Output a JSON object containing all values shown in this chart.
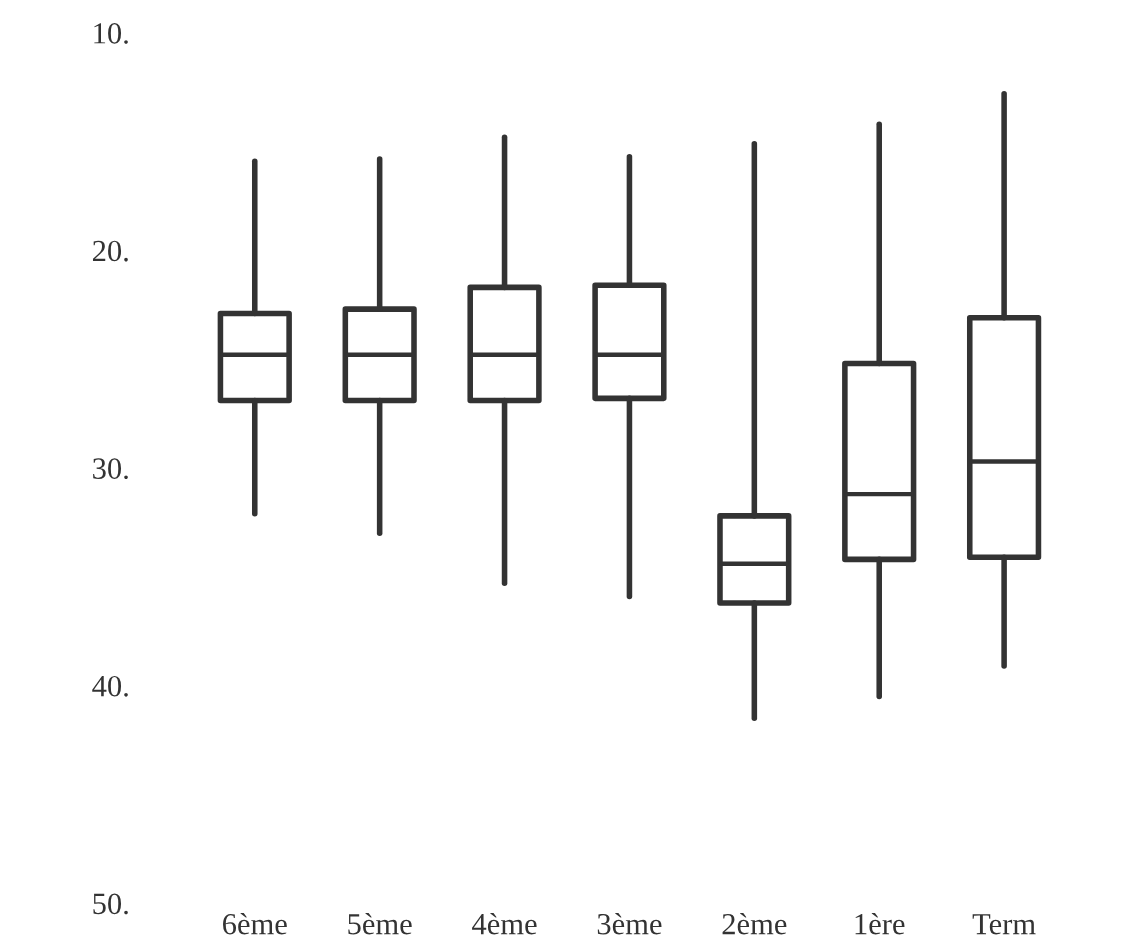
{
  "chart_data": {
    "type": "box",
    "categories": [
      "6ème",
      "5ème",
      "4ème",
      "3ème",
      "2ème",
      "1ère",
      "Term"
    ],
    "boxes": [
      {
        "low": 15.9,
        "q1": 22.9,
        "median": 24.8,
        "q3": 26.9,
        "high": 32.1
      },
      {
        "low": 15.8,
        "q1": 22.7,
        "median": 24.8,
        "q3": 26.9,
        "high": 33.0
      },
      {
        "low": 14.8,
        "q1": 21.7,
        "median": 24.8,
        "q3": 26.9,
        "high": 35.3
      },
      {
        "low": 15.7,
        "q1": 21.6,
        "median": 24.8,
        "q3": 26.8,
        "high": 35.9
      },
      {
        "low": 15.1,
        "q1": 32.2,
        "median": 34.4,
        "q3": 36.2,
        "high": 41.5
      },
      {
        "low": 14.2,
        "q1": 25.2,
        "median": 31.2,
        "q3": 34.2,
        "high": 40.5
      },
      {
        "low": 12.8,
        "q1": 23.1,
        "median": 29.7,
        "q3": 34.1,
        "high": 39.1
      }
    ],
    "color": "#333333",
    "ylim": [
      50,
      10
    ],
    "yticks": [
      {
        "value": 10,
        "label": "10."
      },
      {
        "value": 20,
        "label": "20."
      },
      {
        "value": 30,
        "label": "30."
      },
      {
        "value": 40,
        "label": "40."
      },
      {
        "value": 50,
        "label": "50."
      }
    ],
    "grid": false
  }
}
